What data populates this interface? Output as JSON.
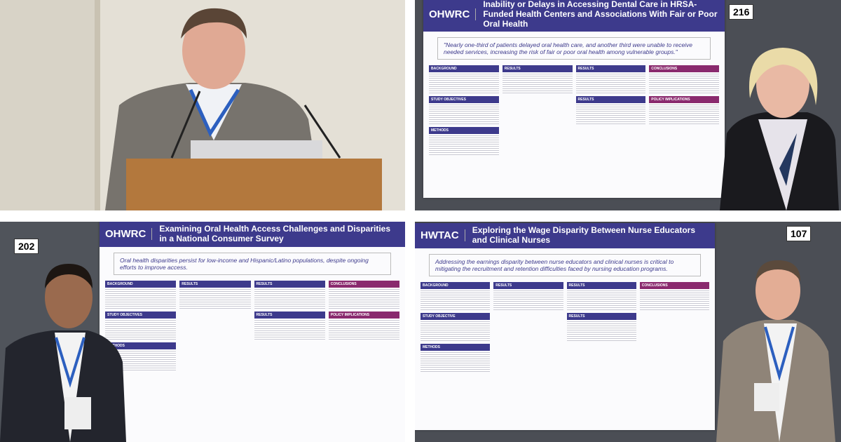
{
  "panels": [
    {
      "scene": "speaker-at-podium"
    },
    {
      "board_number": "216",
      "logo": "OHWRC",
      "title": "Inability or Delays in Accessing Dental Care in HRSA-Funded Health Centers and Associations With Fair or Poor Oral Health",
      "quote": "\"Nearly one-third of patients delayed oral health care, and another third were unable to receive needed services, increasing the risk of fair or poor oral health among vulnerable groups.\"",
      "sections": [
        "BACKGROUND",
        "STUDY OBJECTIVES",
        "METHODS",
        "RESULTS",
        "RESULTS",
        "RESULTS",
        "CONCLUSIONS",
        "POLICY IMPLICATIONS"
      ]
    },
    {
      "board_number": "202",
      "logo": "OHWRC",
      "title": "Examining Oral Health Access Challenges and Disparities in a National Consumer Survey",
      "quote": "Oral health disparities persist for low-income and Hispanic/Latino populations, despite ongoing efforts to improve access.",
      "sections": [
        "BACKGROUND",
        "STUDY OBJECTIVES",
        "METHODS",
        "RESULTS",
        "RESULTS",
        "RESULTS",
        "CONCLUSIONS",
        "POLICY IMPLICATIONS"
      ]
    },
    {
      "board_number": "107",
      "logo": "HWTAC",
      "title": "Exploring the Wage Disparity Between Nurse Educators and Clinical Nurses",
      "quote": "Addressing the earnings disparity between nurse educators and clinical nurses is critical to mitigating the recruitment and retention difficulties faced by nursing education programs.",
      "sections": [
        "BACKGROUND",
        "STUDY OBJECTIVE",
        "METHODS",
        "RESULTS",
        "RESULTS",
        "RESULTS",
        "CONCLUSIONS"
      ]
    }
  ]
}
